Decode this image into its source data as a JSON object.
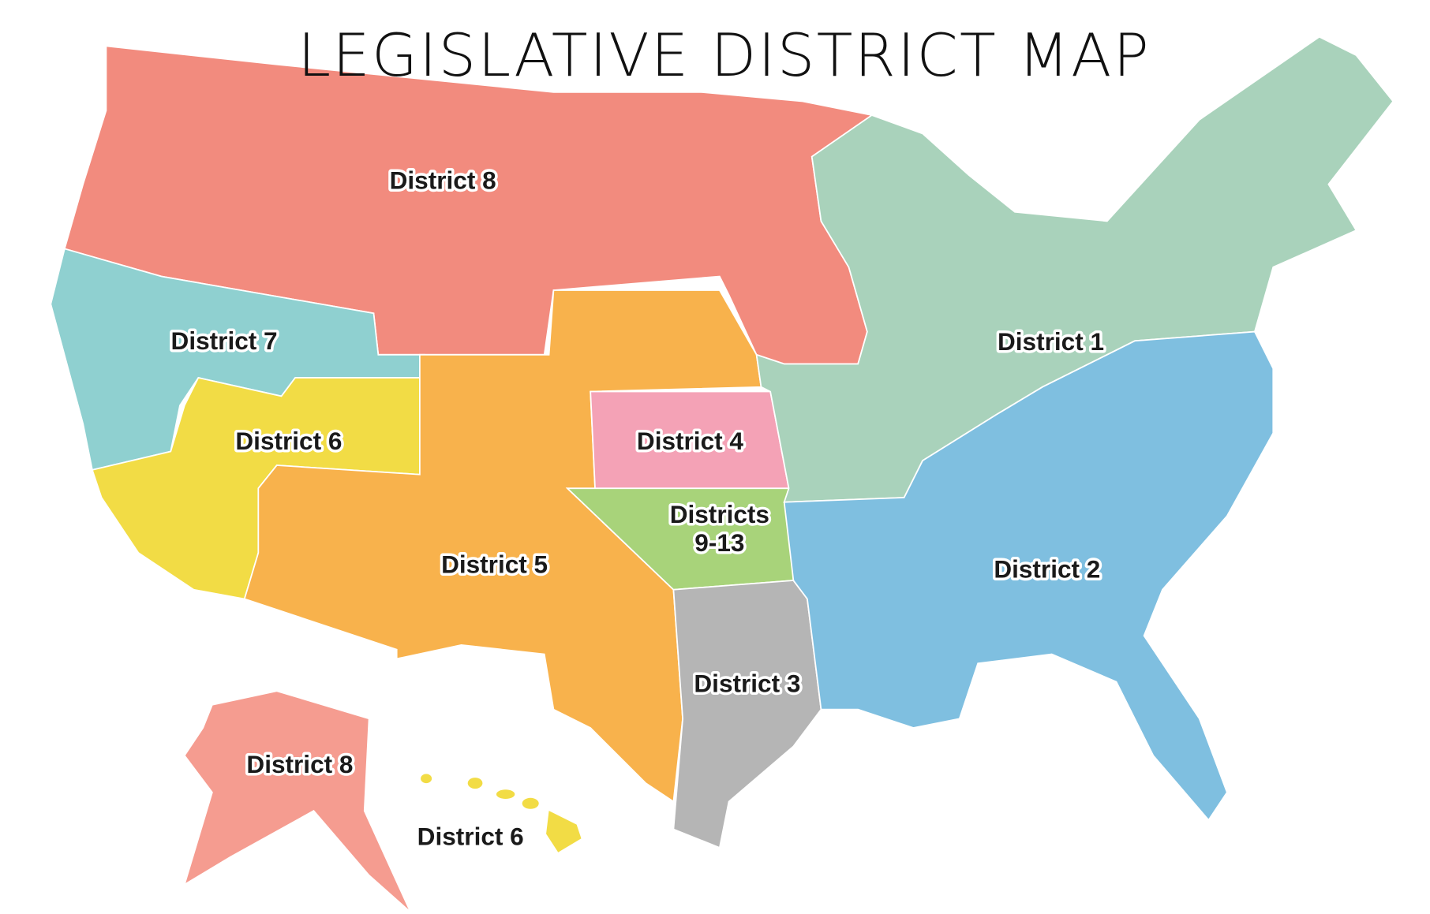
{
  "title": "LEGISLATIVE DISTRICT MAP",
  "regions": [
    {
      "lines": [
        "District 8"
      ],
      "color": "#f28b7e"
    },
    {
      "lines": [
        "District 7"
      ],
      "color": "#8fd0d0"
    },
    {
      "lines": [
        "District 6"
      ],
      "color": "#f2dc45"
    },
    {
      "lines": [
        "District 5"
      ],
      "color": "#f8b24c"
    },
    {
      "lines": [
        "District 4"
      ],
      "color": "#f4a2b6"
    },
    {
      "lines": [
        "Districts",
        "9-13"
      ],
      "color": "#a8d37a"
    },
    {
      "lines": [
        "District 3"
      ],
      "color": "#b5b5b5"
    },
    {
      "lines": [
        "District 1"
      ],
      "color": "#a9d2bb"
    },
    {
      "lines": [
        "District 2"
      ],
      "color": "#7fbfe0"
    },
    {
      "lines": [
        "District 8"
      ],
      "color": "#f59c90"
    },
    {
      "lines": [
        "District 6"
      ],
      "color": "#f2dc45"
    }
  ]
}
